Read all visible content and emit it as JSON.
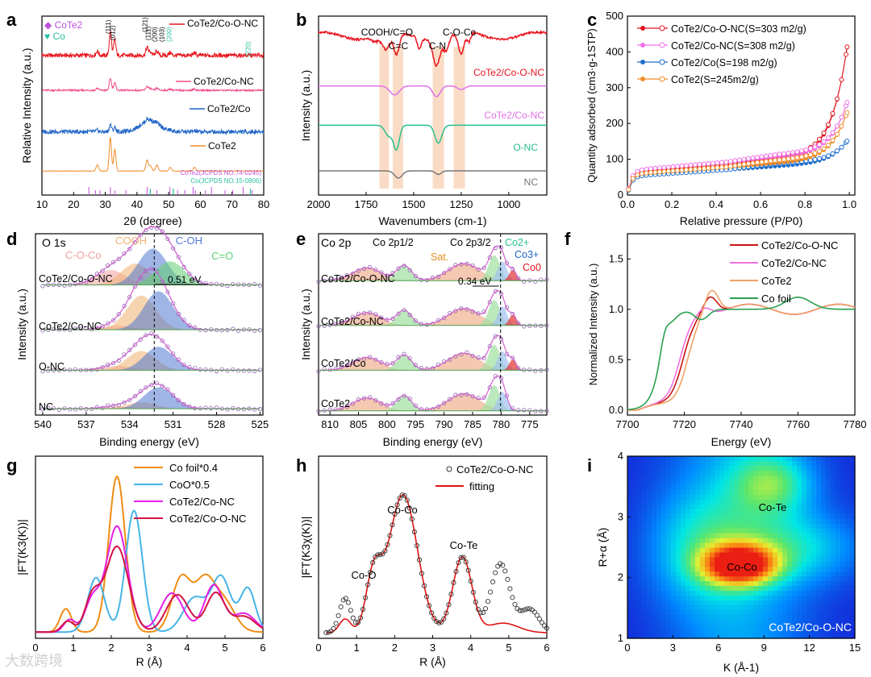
{
  "watermark": "大数跨境",
  "chart_data": [
    {
      "panel": "a",
      "type": "line",
      "xlabel": "2θ (degree)",
      "ylabel": "Relative Intensity (a.u.)",
      "xlim": [
        10,
        80
      ],
      "xticks": [
        10,
        20,
        30,
        40,
        50,
        60,
        70,
        80
      ],
      "series": [
        {
          "name": "CoTe2/Co-O-NC",
          "color": "#e8141e",
          "offset": 3.2
        },
        {
          "name": "CoTe2/Co-NC",
          "color": "#f04b8c",
          "offset": 2.4
        },
        {
          "name": "CoTe2/Co",
          "color": "#1e64c8",
          "offset": 1.45
        },
        {
          "name": "CoTe2",
          "color": "#f08c28",
          "offset": 0.55
        }
      ],
      "peaks": [
        {
          "x": 27.5,
          "h": 0.1,
          "w": 0.4
        },
        {
          "x": 31.6,
          "h": 0.55,
          "w": 0.35
        },
        {
          "x": 33.0,
          "h": 0.35,
          "w": 0.35
        },
        {
          "x": 43.2,
          "h": 0.18,
          "w": 0.4
        },
        {
          "x": 44.3,
          "h": 0.08,
          "w": 0.4
        },
        {
          "x": 46.3,
          "h": 0.1,
          "w": 0.4
        },
        {
          "x": 50.5,
          "h": 0.06,
          "w": 0.4
        },
        {
          "x": 58.2,
          "h": 0.06,
          "w": 0.4
        }
      ],
      "legend_markers": [
        {
          "label": "CoTe2",
          "symbol": "◆",
          "color": "#c050e0"
        },
        {
          "label": "Co",
          "symbol": "♥",
          "color": "#28c0a0"
        }
      ],
      "peak_labels": [
        "(111)",
        "(012)",
        "(121)",
        "(111)",
        "(200)",
        "(103)",
        "(200)",
        "(220)"
      ],
      "jcpds": [
        "CoTe2(JCPDS NO.74-0245)",
        "Co(JCPDS NO.15-0806)"
      ],
      "jcpds_cote2_lines": [
        24.8,
        26.9,
        28.3,
        31.6,
        33.0,
        36.5,
        43.2,
        44.2,
        46.3,
        50.4,
        52.8,
        55.1,
        57.7,
        58.4,
        61.6,
        63.5,
        67.8,
        70.2,
        73.5,
        76.3
      ],
      "jcpds_co_lines": [
        44.2,
        51.5,
        75.8
      ],
      "labels": [
        "CoTe2/Co-O-NC",
        "CoTe2/Co-NC",
        "CoTe2/Co",
        "CoTe2"
      ]
    },
    {
      "panel": "b",
      "type": "line",
      "xlabel": "Wavenumbers (cm-1)",
      "ylabel": "Intensity (a.u.)",
      "xlim": [
        2000,
        800
      ],
      "xticks": [
        2000,
        1750,
        1500,
        1250,
        1000
      ],
      "series": [
        {
          "name": "CoTe2/Co-O-NC",
          "color": "#e8141e"
        },
        {
          "name": "CoTe2/Co-NC",
          "color": "#e070e8"
        },
        {
          "name": "O-NC",
          "color": "#28c08c"
        },
        {
          "name": "NC",
          "color": "#787878"
        }
      ],
      "bands": [
        [
          1230,
          1290
        ],
        [
          1340,
          1400
        ],
        [
          1555,
          1610
        ],
        [
          1630,
          1680
        ]
      ],
      "band_labels": [
        "C-O-Co",
        "C-N",
        "C=C",
        "COOH/C=O"
      ],
      "labels": [
        "CoTe2/Co-O-NC",
        "CoTe2/Co-NC",
        "O-NC",
        "NC"
      ]
    },
    {
      "panel": "c",
      "type": "scatter",
      "xlabel": "Relative pressure (P/P0)",
      "ylabel": "Quantity adsorbed (cm3·g-1STP)",
      "xlim": [
        0,
        1.0
      ],
      "ylim": [
        0,
        500
      ],
      "xticks": [
        0.0,
        0.2,
        0.4,
        0.6,
        0.8,
        1.0
      ],
      "yticks": [
        0,
        100,
        200,
        300,
        400,
        500
      ],
      "series": [
        {
          "name": "CoTe2/Co-O-NC(S=303 m2/g)",
          "color": "#e0141e",
          "base": 62,
          "mid": 0.9,
          "top": 460
        },
        {
          "name": "CoTe2/Co-NC(S=308 m2/g)",
          "color": "#f06ee6",
          "base": 68,
          "mid": 0.8,
          "top": 280
        },
        {
          "name": "CoTe2/Co(S=198 m2/g)",
          "color": "#1e6ecc",
          "base": 52,
          "mid": 0.6,
          "top": 160
        },
        {
          "name": "CoTe2(S=245m2/g)",
          "color": "#f08c28",
          "base": 58,
          "mid": 0.75,
          "top": 250
        }
      ]
    },
    {
      "panel": "d",
      "type": "line",
      "title": "O 1s",
      "xlabel": "Binding energy (eV)",
      "ylabel": "Intensity (a.u.)",
      "xlim": [
        540,
        525
      ],
      "xticks": [
        540,
        537,
        534,
        531,
        528,
        525
      ],
      "components": [
        {
          "name": "C-O-Co",
          "center": 535.3,
          "color": "#f0a0a0"
        },
        {
          "name": "COOH",
          "center": 533.6,
          "color": "#f0b070"
        },
        {
          "name": "C-OH",
          "center": 532.4,
          "color": "#5078d0"
        },
        {
          "name": "C=O",
          "center": 531.2,
          "color": "#60d070"
        }
      ],
      "samples": [
        "CoTe2/Co-O-NC",
        "CoTe2/Co-NC",
        "O-NC",
        "NC"
      ],
      "shift_label": "0.51 eV",
      "dashed_line": 532.3
    },
    {
      "panel": "e",
      "type": "line",
      "title": "Co 2p",
      "xlabel": "Binding energy (eV)",
      "ylabel": "Intensity (a.u.)",
      "xlim": [
        812,
        772
      ],
      "xticks": [
        810,
        805,
        800,
        795,
        790,
        785,
        780,
        775
      ],
      "annotations": [
        "Co 2p1/2",
        "Co 2p3/2",
        "Sat.",
        "Co2+",
        "Co3+",
        "Co0"
      ],
      "samples": [
        "CoTe2/Co-O-NC",
        "CoTe2/Co-NC",
        "CoTe2/Co",
        "CoTe2"
      ],
      "shift_label": "0.34 eV",
      "dashed_line": 780.1
    },
    {
      "panel": "f",
      "type": "line",
      "xlabel": "Energy (eV)",
      "ylabel": "Normalized Intensity (a.u.)",
      "xlim": [
        7700,
        7780
      ],
      "ylim": [
        -0.05,
        1.75
      ],
      "xticks": [
        7700,
        7720,
        7740,
        7760,
        7780
      ],
      "yticks": [
        0.0,
        0.5,
        1.0,
        1.5
      ],
      "series": [
        {
          "name": "CoTe2/Co-O-NC",
          "color": "#c81414",
          "e0": 7719.5,
          "peak": 1.18,
          "pe": 7729
        },
        {
          "name": "CoTe2/Co-NC",
          "color": "#f070e0",
          "e0": 7718.5,
          "peak": 1.08,
          "pe": 7727
        },
        {
          "name": "CoTe2",
          "color": "#f0a064",
          "e0": 7721,
          "peak": 1.25,
          "pe": 7729.5
        },
        {
          "name": "Co foil",
          "color": "#28a050",
          "e0": 7712,
          "peak": 0.9,
          "pe": 7726
        }
      ]
    },
    {
      "panel": "g",
      "type": "line",
      "xlabel": "R (Å)",
      "ylabel": "|FT(K3(K))|",
      "xlim": [
        0,
        6
      ],
      "xticks": [
        0,
        1,
        2,
        3,
        4,
        5,
        6
      ],
      "series": [
        {
          "name": "Co foil*0.4",
          "color": "#f08c14",
          "peaks": [
            [
              0.8,
              0.15,
              0.15
            ],
            [
              2.15,
              1.0,
              0.22
            ],
            [
              3.85,
              0.35,
              0.25
            ],
            [
              4.45,
              0.3,
              0.25
            ],
            [
              4.95,
              0.2,
              0.3
            ]
          ]
        },
        {
          "name": "CoO*0.5",
          "color": "#46b4e6",
          "peaks": [
            [
              1.6,
              0.35,
              0.22
            ],
            [
              2.6,
              0.78,
              0.22
            ],
            [
              4.2,
              0.22,
              0.3
            ],
            [
              4.9,
              0.35,
              0.25
            ],
            [
              5.6,
              0.28,
              0.2
            ]
          ]
        },
        {
          "name": "CoTe2/Co-NC",
          "color": "#e61ee6",
          "peaks": [
            [
              0.9,
              0.08,
              0.15
            ],
            [
              1.5,
              0.2,
              0.2
            ],
            [
              2.15,
              0.68,
              0.28
            ],
            [
              3.6,
              0.25,
              0.3
            ],
            [
              4.7,
              0.3,
              0.25
            ],
            [
              5.5,
              0.12,
              0.3
            ]
          ]
        },
        {
          "name": "CoTe2/Co-O-NC",
          "color": "#d21446",
          "peaks": [
            [
              0.85,
              0.07,
              0.15
            ],
            [
              1.5,
              0.22,
              0.2
            ],
            [
              2.15,
              0.55,
              0.3
            ],
            [
              3.75,
              0.24,
              0.3
            ],
            [
              4.75,
              0.25,
              0.25
            ],
            [
              5.5,
              0.1,
              0.3
            ]
          ]
        }
      ]
    },
    {
      "panel": "h",
      "type": "line",
      "xlabel": "R (Å)",
      "ylabel": "|FT(K3χ(K))|",
      "xlim": [
        0,
        6
      ],
      "xticks": [
        0,
        1,
        2,
        3,
        4,
        5,
        6
      ],
      "series": [
        {
          "name": "CoTe2/Co-O-NC",
          "color": "#000000",
          "peaks": [
            [
              0.7,
              0.25,
              0.15
            ],
            [
              1.45,
              0.4,
              0.2
            ],
            [
              2.22,
              1.0,
              0.38
            ],
            [
              3.78,
              0.55,
              0.25
            ],
            [
              4.78,
              0.5,
              0.25
            ],
            [
              5.55,
              0.17,
              0.25
            ]
          ]
        },
        {
          "name": "fitting",
          "color": "#e01414",
          "peaks": [
            [
              0.7,
              0.1,
              0.15
            ],
            [
              1.45,
              0.4,
              0.2
            ],
            [
              2.22,
              1.0,
              0.38
            ],
            [
              3.78,
              0.55,
              0.25
            ],
            [
              4.85,
              0.07,
              0.4
            ]
          ]
        }
      ],
      "annotations": [
        "Co-O",
        "Co-Co",
        "Co-Te"
      ]
    },
    {
      "panel": "i",
      "type": "heatmap",
      "xlabel": "K (Å-1)",
      "ylabel": "R+α (Å)",
      "xlim": [
        0,
        15
      ],
      "ylim": [
        1,
        4
      ],
      "xticks": [
        0,
        3,
        6,
        9,
        12,
        15
      ],
      "yticks": [
        1,
        2,
        3,
        4
      ],
      "blobs": [
        [
          7.4,
          2.22,
          1.6,
          0.22,
          1.0
        ],
        [
          9.5,
          3.55,
          1.8,
          0.35,
          0.35
        ],
        [
          11,
          2.5,
          3,
          0.4,
          0.25
        ]
      ],
      "annotations": [
        "Co-Te",
        "Co-Co",
        "CoTe2/Co-O-NC"
      ]
    }
  ]
}
